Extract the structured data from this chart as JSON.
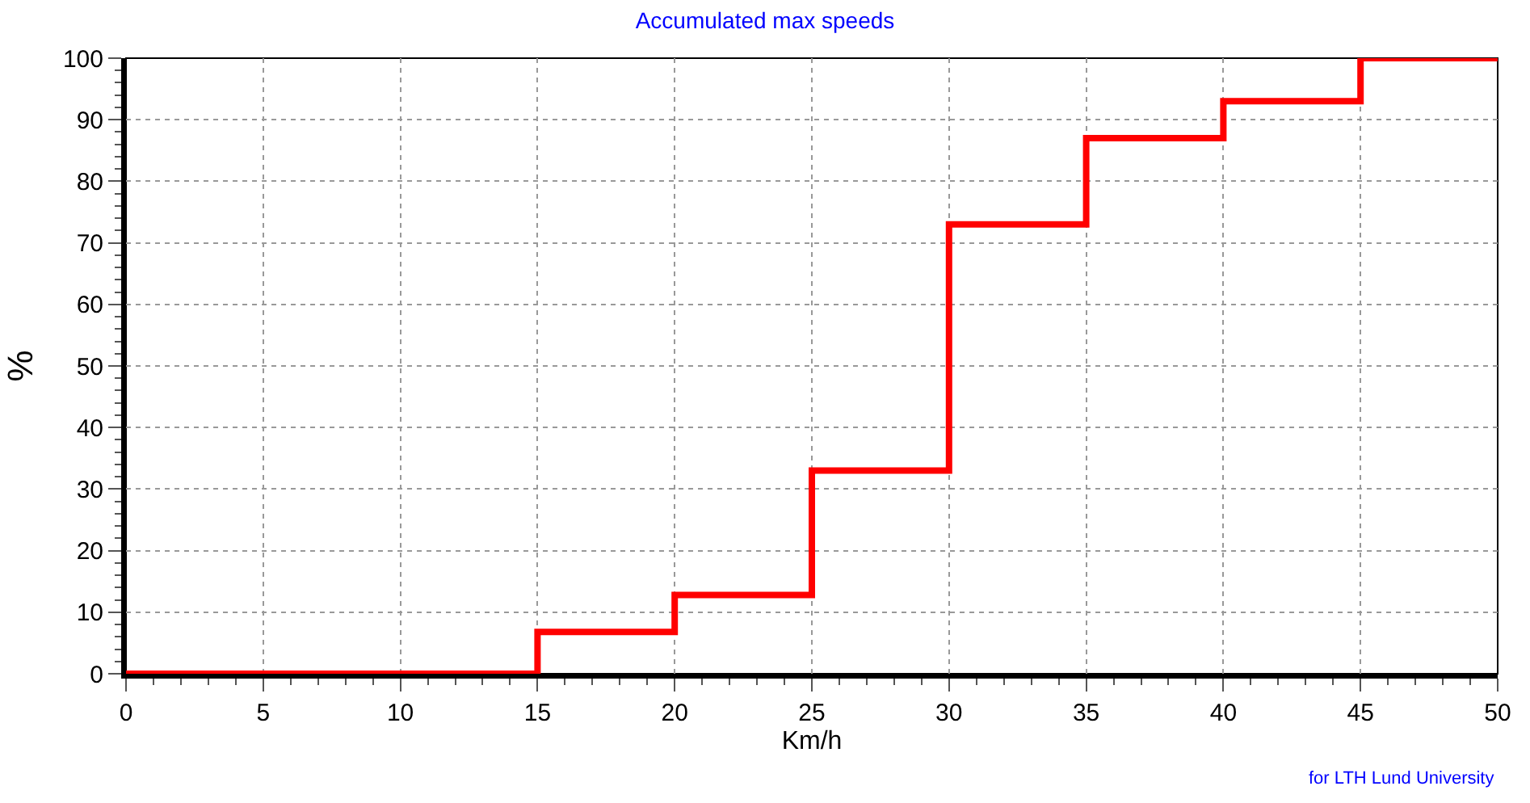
{
  "chart_data": {
    "type": "step",
    "title": "Accumulated max speeds",
    "xlabel": "Km/h",
    "ylabel": "%",
    "x": [
      0,
      15,
      20,
      25,
      30,
      35,
      40,
      45,
      50
    ],
    "series": [
      {
        "color": "#ff0000",
        "values": [
          0,
          6.8,
          12.8,
          33,
          73,
          87,
          93,
          100,
          100
        ]
      }
    ],
    "xlim": [
      0,
      50
    ],
    "xticks": [
      0,
      5,
      10,
      15,
      20,
      25,
      30,
      35,
      40,
      45,
      50
    ],
    "ylim": [
      0,
      100
    ],
    "yticks": [
      0,
      10,
      20,
      30,
      40,
      50,
      60,
      70,
      80,
      90,
      100
    ],
    "grid": true,
    "marker": "none",
    "line_style": "solid",
    "annotations": [
      "for LTH Lund University"
    ]
  }
}
